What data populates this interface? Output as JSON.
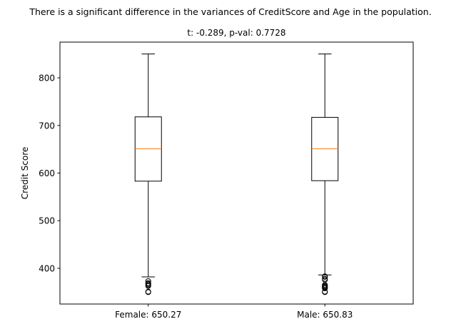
{
  "chart_data": {
    "type": "boxplot",
    "suptitle": "There is a significant difference in the variances of CreditScore and Age in the population.",
    "title": "t: -0.289, p-val: 0.7728",
    "xlabel": "",
    "ylabel": "Credit Score",
    "ylim": [
      325,
      875
    ],
    "yticks": [
      400,
      500,
      600,
      700,
      800
    ],
    "categories": [
      "Female: 650.27",
      "Male: 650.83"
    ],
    "boxes": [
      {
        "category": "Female: 650.27",
        "whisker_low": 382,
        "q1": 583,
        "median": 651,
        "q3": 718,
        "whisker_high": 850,
        "outliers": [
          350,
          351,
          363,
          365,
          367,
          369,
          373
        ]
      },
      {
        "category": "Male: 650.83",
        "whisker_low": 386,
        "q1": 584,
        "median": 651,
        "q3": 717,
        "whisker_high": 850,
        "outliers": [
          350,
          351,
          358,
          359,
          361,
          362,
          363,
          365,
          376,
          378,
          382,
          383
        ]
      }
    ],
    "grid": false,
    "legend": "none",
    "colors": {
      "box": "#000000",
      "median": "#ff7f0e",
      "outlier": "#000000"
    }
  }
}
